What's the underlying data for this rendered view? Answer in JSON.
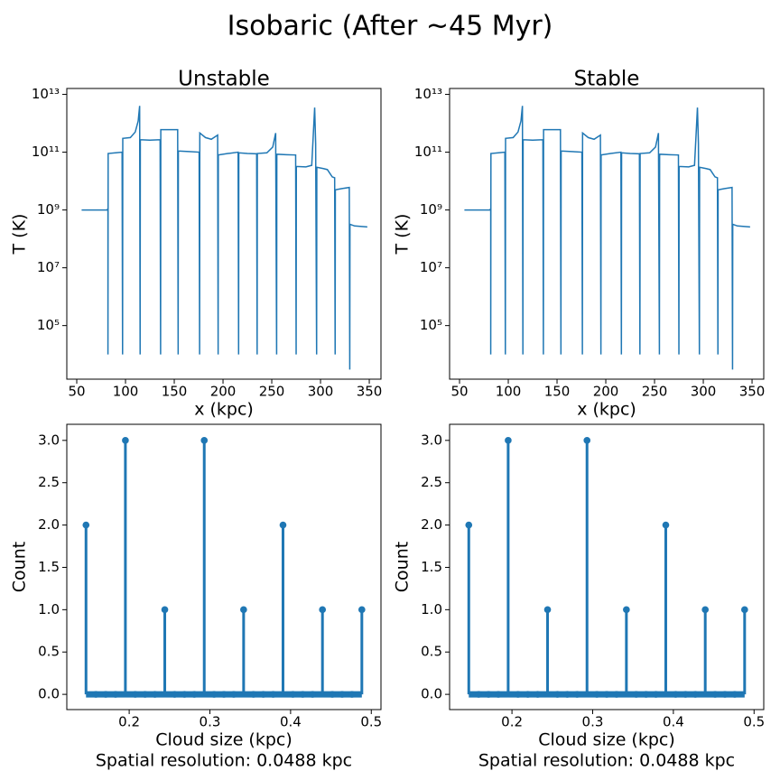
{
  "title": "Isobaric (After ~45 Myr)",
  "chart_data": [
    {
      "type": "line",
      "title": "Unstable",
      "xlabel": "x (kpc)",
      "ylabel": "T (K)",
      "log_y": true,
      "color": "#1f77b4",
      "xlim": [
        39.8,
        362
      ],
      "xticks": [
        50,
        100,
        150,
        200,
        250,
        300,
        350
      ],
      "ylim": [
        1400,
        16000000000000
      ],
      "yticks": [
        {
          "value": 100000,
          "label": "10⁵"
        },
        {
          "value": 10000000,
          "label": "10⁷"
        },
        {
          "value": 1000000000,
          "label": "10⁹"
        },
        {
          "value": 100000000000,
          "label": "10¹¹"
        },
        {
          "value": 10000000000000,
          "label": "10¹³"
        }
      ],
      "x": [
        55,
        81,
        81.5,
        82,
        82,
        82.2,
        90,
        96.5,
        97,
        97.2,
        105,
        110,
        113,
        114.5,
        115,
        115.2,
        125,
        135.5,
        136,
        136.2,
        145,
        153.5,
        154,
        154.2,
        165,
        175.5,
        176,
        176.2,
        182,
        188,
        194.5,
        195,
        195.2,
        205,
        215.5,
        216,
        216.2,
        225,
        234.5,
        235,
        235.2,
        245,
        251,
        254,
        255,
        255.2,
        265,
        274.5,
        275,
        275.2,
        285,
        291,
        294,
        295,
        296,
        296.2,
        303,
        307,
        312,
        314.5,
        315,
        315.2,
        322,
        329.5,
        330,
        330.2,
        335,
        348
      ],
      "values": [
        1000000000,
        1000000000,
        1050000000,
        1000000000,
        10000,
        90000000000,
        95000000000,
        100000000000,
        10000,
        300000000000,
        320000000000,
        500000000000,
        1200000000000,
        4000000000000,
        10000,
        270000000000,
        260000000000,
        270000000000,
        10000,
        600000000000,
        600000000000,
        600000000000,
        10000,
        110000000000,
        105000000000,
        100000000000,
        10000,
        460000000000,
        320000000000,
        280000000000,
        390000000000,
        10000,
        80000000000,
        90000000000,
        100000000000,
        10000,
        95000000000,
        90000000000,
        88000000000,
        10000,
        90000000000,
        95000000000,
        150000000000,
        460000000000,
        10000,
        85000000000,
        82000000000,
        80000000000,
        10000,
        32000000000,
        31000000000,
        35000000000,
        3500000000000,
        200000000000,
        10000,
        30000000000,
        27000000000,
        25000000000,
        14000000000,
        13000000000,
        10000,
        5000000000,
        5500000000,
        6000000000,
        3000,
        320000000,
        280000000,
        260000000
      ]
    },
    {
      "type": "line",
      "title": "Stable",
      "xlabel": "x (kpc)",
      "ylabel": "T (K)",
      "log_y": true,
      "color": "#1f77b4",
      "xlim": [
        39.8,
        362
      ],
      "xticks": [
        50,
        100,
        150,
        200,
        250,
        300,
        350
      ],
      "ylim": [
        1400,
        16000000000000
      ],
      "yticks": [
        {
          "value": 100000,
          "label": "10⁵"
        },
        {
          "value": 10000000,
          "label": "10⁷"
        },
        {
          "value": 1000000000,
          "label": "10⁹"
        },
        {
          "value": 100000000000,
          "label": "10¹¹"
        },
        {
          "value": 10000000000000,
          "label": "10¹³"
        }
      ],
      "x": [
        55,
        81,
        81.5,
        82,
        82,
        82.2,
        90,
        96.5,
        97,
        97.2,
        105,
        110,
        113,
        114.5,
        115,
        115.2,
        125,
        135.5,
        136,
        136.2,
        145,
        153.5,
        154,
        154.2,
        165,
        175.5,
        176,
        176.2,
        182,
        188,
        194.5,
        195,
        195.2,
        205,
        215.5,
        216,
        216.2,
        225,
        234.5,
        235,
        235.2,
        245,
        251,
        254,
        255,
        255.2,
        265,
        274.5,
        275,
        275.2,
        285,
        291,
        294,
        295,
        296,
        296.2,
        303,
        307,
        312,
        314.5,
        315,
        315.2,
        322,
        329.5,
        330,
        330.2,
        335,
        348
      ],
      "values": [
        1000000000,
        1000000000,
        1050000000,
        1000000000,
        10000,
        90000000000,
        95000000000,
        100000000000,
        10000,
        300000000000,
        320000000000,
        500000000000,
        1200000000000,
        4000000000000,
        10000,
        270000000000,
        260000000000,
        270000000000,
        10000,
        600000000000,
        600000000000,
        600000000000,
        10000,
        110000000000,
        105000000000,
        100000000000,
        10000,
        460000000000,
        320000000000,
        280000000000,
        390000000000,
        10000,
        80000000000,
        90000000000,
        100000000000,
        10000,
        95000000000,
        90000000000,
        88000000000,
        10000,
        90000000000,
        95000000000,
        150000000000,
        460000000000,
        10000,
        85000000000,
        82000000000,
        80000000000,
        10000,
        32000000000,
        31000000000,
        35000000000,
        3500000000000,
        200000000000,
        10000,
        30000000000,
        27000000000,
        25000000000,
        14000000000,
        13000000000,
        10000,
        5000000000,
        5500000000,
        6000000000,
        3000,
        320000000,
        280000000,
        260000000
      ]
    },
    {
      "type": "stem",
      "xlabel": "Cloud size (kpc)",
      "note": "Spatial resolution: 0.0488 kpc",
      "ylabel": "Count",
      "color": "#1f77b4",
      "xlim": [
        0.1227,
        0.512
      ],
      "xticks": [
        0.2,
        0.3,
        0.4,
        0.5
      ],
      "ylim": [
        -0.18,
        3.19
      ],
      "yticks": [
        {
          "value": 0,
          "label": "0.0"
        },
        {
          "value": 0.5,
          "label": "0.5"
        },
        {
          "value": 1,
          "label": "1.0"
        },
        {
          "value": 1.5,
          "label": "1.5"
        },
        {
          "value": 2,
          "label": "2.0"
        },
        {
          "value": 2.5,
          "label": "2.5"
        },
        {
          "value": 3,
          "label": "3.0"
        }
      ],
      "x": [
        0.1465,
        0.1587,
        0.1709,
        0.1831,
        0.1953,
        0.2075,
        0.2197,
        0.2319,
        0.2441,
        0.2563,
        0.2685,
        0.2807,
        0.293,
        0.3052,
        0.3174,
        0.3296,
        0.3418,
        0.354,
        0.3662,
        0.3784,
        0.3906,
        0.4028,
        0.415,
        0.4272,
        0.4395,
        0.4517,
        0.4639,
        0.4761,
        0.4883
      ],
      "values": [
        2,
        0,
        0,
        0,
        3,
        0,
        0,
        0,
        1,
        0,
        0,
        0,
        3,
        0,
        0,
        0,
        1,
        0,
        0,
        0,
        2,
        0,
        0,
        0,
        1,
        0,
        0,
        0,
        1
      ]
    },
    {
      "type": "stem",
      "xlabel": "Cloud size (kpc)",
      "note": "Spatial resolution: 0.0488 kpc",
      "ylabel": "Count",
      "color": "#1f77b4",
      "xlim": [
        0.1227,
        0.512
      ],
      "xticks": [
        0.2,
        0.3,
        0.4,
        0.5
      ],
      "ylim": [
        -0.18,
        3.19
      ],
      "yticks": [
        {
          "value": 0,
          "label": "0.0"
        },
        {
          "value": 0.5,
          "label": "0.5"
        },
        {
          "value": 1,
          "label": "1.0"
        },
        {
          "value": 1.5,
          "label": "1.5"
        },
        {
          "value": 2,
          "label": "2.0"
        },
        {
          "value": 2.5,
          "label": "2.5"
        },
        {
          "value": 3,
          "label": "3.0"
        }
      ],
      "x": [
        0.1465,
        0.1587,
        0.1709,
        0.1831,
        0.1953,
        0.2075,
        0.2197,
        0.2319,
        0.2441,
        0.2563,
        0.2685,
        0.2807,
        0.293,
        0.3052,
        0.3174,
        0.3296,
        0.3418,
        0.354,
        0.3662,
        0.3784,
        0.3906,
        0.4028,
        0.415,
        0.4272,
        0.4395,
        0.4517,
        0.4639,
        0.4761,
        0.4883
      ],
      "values": [
        2,
        0,
        0,
        0,
        3,
        0,
        0,
        0,
        1,
        0,
        0,
        0,
        3,
        0,
        0,
        0,
        1,
        0,
        0,
        0,
        2,
        0,
        0,
        0,
        1,
        0,
        0,
        0,
        1
      ]
    }
  ]
}
